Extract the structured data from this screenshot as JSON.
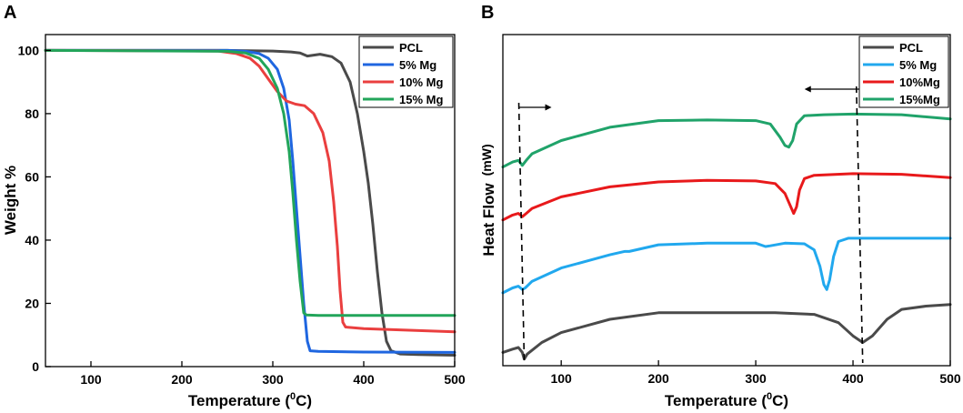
{
  "chart_data": [
    {
      "panel": "A",
      "type": "line",
      "title": "",
      "xlabel": "Temperature (0C)",
      "xlabel_main": "Temperature (",
      "xlabel_sup": "0",
      "xlabel_end": "C)",
      "ylabel": "Weight %",
      "xlim": [
        50,
        500
      ],
      "ylim": [
        0,
        105
      ],
      "x_ticks": [
        100,
        200,
        300,
        400,
        500
      ],
      "y_ticks": [
        0,
        20,
        40,
        60,
        80,
        100
      ],
      "legend": "top-right",
      "grid": false,
      "series": [
        {
          "name": "PCL",
          "color": "#4a4a4a",
          "points": [
            [
              50,
              100
            ],
            [
              250,
              100
            ],
            [
              300,
              99.8
            ],
            [
              320,
              99.5
            ],
            [
              330,
              99.2
            ],
            [
              338,
              98.2
            ],
            [
              345,
              98.5
            ],
            [
              352,
              98.8
            ],
            [
              365,
              98
            ],
            [
              375,
              96
            ],
            [
              385,
              90
            ],
            [
              393,
              80
            ],
            [
              400,
              68
            ],
            [
              405,
              58
            ],
            [
              410,
              45
            ],
            [
              415,
              30
            ],
            [
              420,
              17
            ],
            [
              425,
              8
            ],
            [
              430,
              5
            ],
            [
              440,
              4
            ],
            [
              460,
              3.8
            ],
            [
              500,
              3.6
            ]
          ]
        },
        {
          "name": "5% Mg",
          "color": "#1f66e0",
          "points": [
            [
              50,
              100
            ],
            [
              250,
              100
            ],
            [
              270,
              99.7
            ],
            [
              285,
              99
            ],
            [
              295,
              97.5
            ],
            [
              305,
              94
            ],
            [
              312,
              88
            ],
            [
              318,
              78
            ],
            [
              322,
              65
            ],
            [
              326,
              50
            ],
            [
              330,
              35
            ],
            [
              334,
              20
            ],
            [
              338,
              8
            ],
            [
              341,
              5
            ],
            [
              350,
              4.8
            ],
            [
              400,
              4.6
            ],
            [
              500,
              4.5
            ]
          ]
        },
        {
          "name": "10% Mg",
          "color": "#ea3f3f",
          "points": [
            [
              50,
              100
            ],
            [
              240,
              99.8
            ],
            [
              260,
              99
            ],
            [
              275,
              97.5
            ],
            [
              285,
              95
            ],
            [
              295,
              91
            ],
            [
              305,
              87
            ],
            [
              315,
              84
            ],
            [
              325,
              83
            ],
            [
              335,
              82.5
            ],
            [
              345,
              80
            ],
            [
              355,
              74
            ],
            [
              362,
              65
            ],
            [
              367,
              52
            ],
            [
              371,
              38
            ],
            [
              374,
              24
            ],
            [
              377,
              14
            ],
            [
              380,
              12.5
            ],
            [
              400,
              12
            ],
            [
              450,
              11.5
            ],
            [
              500,
              11
            ]
          ]
        },
        {
          "name": "15% Mg",
          "color": "#22a55a",
          "points": [
            [
              50,
              100
            ],
            [
              250,
              99.7
            ],
            [
              270,
              99.2
            ],
            [
              285,
              97.5
            ],
            [
              295,
              94
            ],
            [
              305,
              88
            ],
            [
              312,
              80
            ],
            [
              318,
              68
            ],
            [
              322,
              55
            ],
            [
              326,
              40
            ],
            [
              330,
              27
            ],
            [
              334,
              17
            ],
            [
              337,
              16.3
            ],
            [
              350,
              16.2
            ],
            [
              400,
              16.2
            ],
            [
              500,
              16.2
            ]
          ]
        }
      ]
    },
    {
      "panel": "B",
      "type": "line",
      "title": "",
      "xlabel": "Temperature (0C)",
      "xlabel_main": "Temperature (",
      "xlabel_sup": "0",
      "xlabel_end": "C)",
      "ylabel": "Heat Flow (mW)",
      "ylabel_main": "Heat Flow",
      "ylabel_unit": "(mW)",
      "xlim": [
        40,
        500
      ],
      "ylim": [
        0,
        10
      ],
      "x_ticks": [
        100,
        200,
        300,
        400,
        500
      ],
      "y_ticks": [],
      "legend": "top-right",
      "grid": false,
      "annotations": {
        "dashed_lines_x": [
          62,
          410
        ],
        "arrows": [
          "right arrow at 62",
          "left arrow at 410"
        ]
      },
      "series": [
        {
          "name": "PCL",
          "color": "#4a4a4a",
          "points": [
            [
              40,
              0.4
            ],
            [
              50,
              0.5
            ],
            [
              56,
              0.55
            ],
            [
              60,
              0.4
            ],
            [
              62,
              0.2
            ],
            [
              65,
              0.35
            ],
            [
              80,
              0.7
            ],
            [
              100,
              1.0
            ],
            [
              150,
              1.4
            ],
            [
              200,
              1.6
            ],
            [
              250,
              1.6
            ],
            [
              320,
              1.6
            ],
            [
              360,
              1.55
            ],
            [
              385,
              1.3
            ],
            [
              400,
              0.9
            ],
            [
              410,
              0.7
            ],
            [
              420,
              0.9
            ],
            [
              435,
              1.4
            ],
            [
              450,
              1.7
            ],
            [
              475,
              1.8
            ],
            [
              500,
              1.85
            ]
          ]
        },
        {
          "name": "5% Mg",
          "color": "#21a8ee",
          "points": [
            [
              40,
              2.2
            ],
            [
              50,
              2.35
            ],
            [
              56,
              2.4
            ],
            [
              60,
              2.3
            ],
            [
              63,
              2.35
            ],
            [
              70,
              2.55
            ],
            [
              100,
              2.95
            ],
            [
              150,
              3.35
            ],
            [
              165,
              3.45
            ],
            [
              170,
              3.45
            ],
            [
              200,
              3.65
            ],
            [
              250,
              3.7
            ],
            [
              300,
              3.7
            ],
            [
              310,
              3.6
            ],
            [
              315,
              3.62
            ],
            [
              330,
              3.7
            ],
            [
              350,
              3.68
            ],
            [
              360,
              3.5
            ],
            [
              366,
              3.0
            ],
            [
              370,
              2.45
            ],
            [
              373,
              2.3
            ],
            [
              376,
              2.6
            ],
            [
              380,
              3.3
            ],
            [
              385,
              3.75
            ],
            [
              395,
              3.85
            ],
            [
              450,
              3.85
            ],
            [
              500,
              3.85
            ]
          ]
        },
        {
          "name": "10%Mg",
          "color": "#e8191b",
          "points": [
            [
              40,
              4.4
            ],
            [
              50,
              4.55
            ],
            [
              56,
              4.6
            ],
            [
              60,
              4.5
            ],
            [
              64,
              4.6
            ],
            [
              70,
              4.75
            ],
            [
              100,
              5.1
            ],
            [
              150,
              5.4
            ],
            [
              200,
              5.55
            ],
            [
              250,
              5.6
            ],
            [
              300,
              5.58
            ],
            [
              320,
              5.5
            ],
            [
              330,
              5.2
            ],
            [
              336,
              4.8
            ],
            [
              339,
              4.6
            ],
            [
              342,
              4.8
            ],
            [
              345,
              5.3
            ],
            [
              350,
              5.65
            ],
            [
              360,
              5.75
            ],
            [
              400,
              5.8
            ],
            [
              450,
              5.78
            ],
            [
              500,
              5.68
            ]
          ]
        },
        {
          "name": "15%Mg",
          "color": "#20a36a",
          "points": [
            [
              40,
              6.0
            ],
            [
              50,
              6.15
            ],
            [
              56,
              6.2
            ],
            [
              60,
              6.05
            ],
            [
              64,
              6.2
            ],
            [
              70,
              6.4
            ],
            [
              100,
              6.8
            ],
            [
              150,
              7.2
            ],
            [
              200,
              7.4
            ],
            [
              250,
              7.42
            ],
            [
              300,
              7.4
            ],
            [
              315,
              7.3
            ],
            [
              325,
              6.9
            ],
            [
              330,
              6.65
            ],
            [
              334,
              6.6
            ],
            [
              338,
              6.8
            ],
            [
              342,
              7.3
            ],
            [
              350,
              7.55
            ],
            [
              370,
              7.58
            ],
            [
              400,
              7.6
            ],
            [
              450,
              7.58
            ],
            [
              500,
              7.45
            ]
          ]
        }
      ]
    }
  ]
}
